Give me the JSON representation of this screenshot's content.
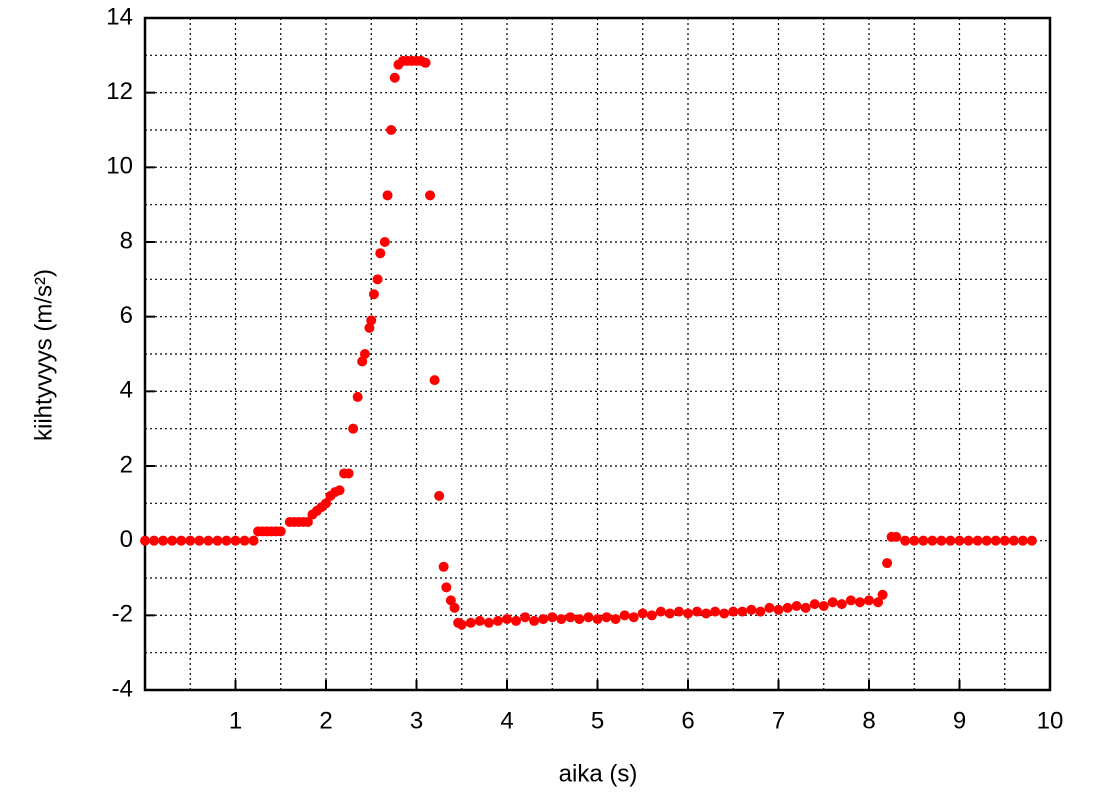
{
  "chart_data": {
    "type": "scatter",
    "xlabel": "aika (s)",
    "ylabel": "kiihtyvyys (m/s²)",
    "xlim": [
      0,
      10
    ],
    "ylim": [
      -4,
      14
    ],
    "xticks": [
      1,
      2,
      3,
      4,
      5,
      6,
      7,
      8,
      9,
      10
    ],
    "yticks": [
      -4,
      -2,
      0,
      2,
      4,
      6,
      8,
      10,
      12,
      14
    ],
    "xminor_ticks": [
      0.5,
      1.5,
      2.5,
      3.5,
      4.5,
      5.5,
      6.5,
      7.5,
      8.5,
      9.5
    ],
    "yminor_ticks": [
      -3,
      -1,
      1,
      3,
      5,
      7,
      9,
      11,
      13
    ],
    "grid": true,
    "color": "#ff0000",
    "x": [
      0,
      0.1,
      0.2,
      0.3,
      0.4,
      0.5,
      0.6,
      0.7,
      0.8,
      0.9,
      1.0,
      1.1,
      1.2,
      1.25,
      1.3,
      1.35,
      1.4,
      1.45,
      1.5,
      1.6,
      1.65,
      1.7,
      1.75,
      1.8,
      1.85,
      1.9,
      1.95,
      2.0,
      2.05,
      2.1,
      2.15,
      2.2,
      2.25,
      2.3,
      2.35,
      2.4,
      2.43,
      2.48,
      2.5,
      2.53,
      2.57,
      2.6,
      2.65,
      2.68,
      2.72,
      2.76,
      2.8,
      2.85,
      2.9,
      2.95,
      3.0,
      3.05,
      3.1,
      3.15,
      3.2,
      3.25,
      3.3,
      3.33,
      3.38,
      3.42,
      3.46,
      3.5,
      3.6,
      3.7,
      3.8,
      3.9,
      4.0,
      4.1,
      4.2,
      4.3,
      4.4,
      4.5,
      4.6,
      4.7,
      4.8,
      4.9,
      5.0,
      5.1,
      5.2,
      5.3,
      5.4,
      5.5,
      5.6,
      5.7,
      5.8,
      5.9,
      6.0,
      6.1,
      6.2,
      6.3,
      6.4,
      6.5,
      6.6,
      6.7,
      6.8,
      6.9,
      7.0,
      7.1,
      7.2,
      7.3,
      7.4,
      7.5,
      7.6,
      7.7,
      7.8,
      7.9,
      8.0,
      8.1,
      8.15,
      8.2,
      8.25,
      8.3,
      8.4,
      8.5,
      8.6,
      8.7,
      8.8,
      8.9,
      9.0,
      9.1,
      9.2,
      9.3,
      9.4,
      9.5,
      9.6,
      9.7,
      9.8
    ],
    "values": [
      0,
      0,
      0,
      0,
      0,
      0,
      0,
      0,
      0,
      0,
      0,
      0,
      0,
      0.25,
      0.25,
      0.25,
      0.25,
      0.25,
      0.25,
      0.5,
      0.5,
      0.5,
      0.5,
      0.5,
      0.7,
      0.8,
      0.9,
      1.0,
      1.2,
      1.3,
      1.35,
      1.8,
      1.8,
      3.0,
      3.85,
      4.8,
      5.0,
      5.7,
      5.9,
      6.6,
      7.0,
      7.7,
      8.0,
      9.25,
      11.0,
      12.4,
      12.75,
      12.85,
      12.85,
      12.85,
      12.85,
      12.85,
      12.8,
      9.25,
      4.3,
      1.2,
      -0.7,
      -1.25,
      -1.6,
      -1.8,
      -2.2,
      -2.25,
      -2.2,
      -2.15,
      -2.2,
      -2.15,
      -2.1,
      -2.15,
      -2.05,
      -2.15,
      -2.1,
      -2.05,
      -2.1,
      -2.05,
      -2.1,
      -2.05,
      -2.1,
      -2.05,
      -2.1,
      -2.0,
      -2.05,
      -1.95,
      -2.0,
      -1.9,
      -1.95,
      -1.9,
      -1.95,
      -1.9,
      -1.95,
      -1.9,
      -1.95,
      -1.9,
      -1.9,
      -1.85,
      -1.9,
      -1.8,
      -1.85,
      -1.8,
      -1.75,
      -1.8,
      -1.7,
      -1.75,
      -1.65,
      -1.7,
      -1.6,
      -1.65,
      -1.6,
      -1.65,
      -1.45,
      -0.6,
      0.1,
      0.1,
      0,
      0,
      0,
      0,
      0,
      0,
      0,
      0,
      0,
      0,
      0,
      0,
      0,
      0,
      0
    ]
  }
}
